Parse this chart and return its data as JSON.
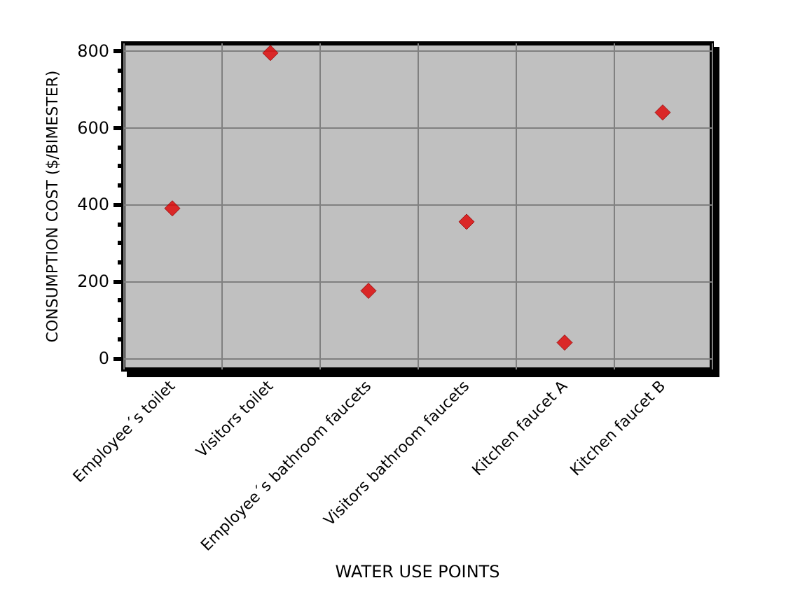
{
  "chart_data": {
    "type": "scatter",
    "xlabel": "WATER USE POINTS",
    "ylabel": "CONSUMPTION COST ($/BIMESTER)",
    "categories": [
      "Employee´s toilet",
      "Visitors toilet",
      "Employee´s bathroom faucets",
      "Visitors bathroom faucets",
      "Kitchen faucet A",
      "Kitchen faucet B"
    ],
    "values": [
      390,
      795,
      175,
      355,
      40,
      640
    ],
    "color": "#e00000",
    "marker": "diamond",
    "ylim": [
      -30,
      820
    ],
    "yticks": [
      0,
      200,
      400,
      600,
      800
    ],
    "grid": true
  }
}
